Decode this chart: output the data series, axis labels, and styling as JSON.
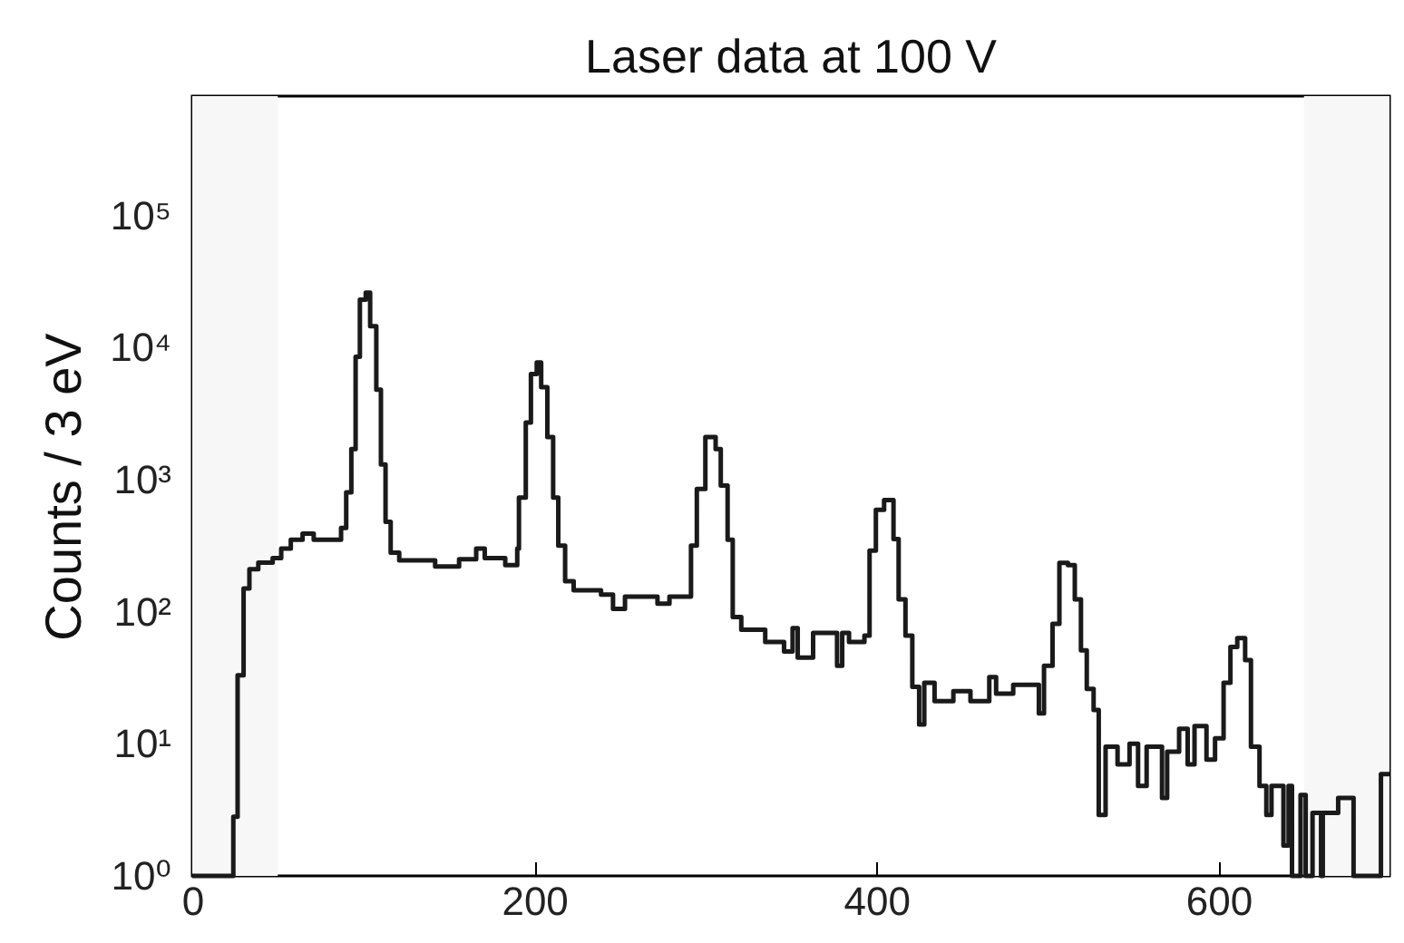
{
  "chart_data": {
    "type": "step",
    "title": "Laser data at 100 V",
    "ylabel": "Counts / 3 eV",
    "x": [
      0,
      24,
      26.5,
      30,
      33.4,
      38.6,
      47,
      52,
      57.6,
      64.5,
      71,
      87,
      90,
      93,
      95.5,
      98,
      101.4,
      104,
      107.6,
      110.3,
      113,
      116,
      121,
      142,
      156,
      166,
      171,
      183,
      190,
      191,
      195,
      198,
      201.4,
      204,
      207.6,
      211,
      214,
      218,
      223,
      239,
      246,
      253,
      272,
      279,
      291.6,
      295,
      300,
      306,
      309,
      313,
      316,
      321,
      335,
      346,
      351,
      354,
      363,
      377,
      380,
      384,
      393,
      396,
      399.7,
      404.5,
      410,
      413,
      417,
      421,
      425,
      428,
      434,
      445,
      455,
      466,
      470,
      480,
      495,
      498,
      503,
      507,
      512,
      516,
      519.6,
      523,
      527,
      530,
      534,
      541,
      548,
      553,
      558,
      567,
      570,
      577,
      582,
      586,
      593,
      598,
      603,
      607,
      611,
      615.6,
      619,
      624,
      628,
      631,
      638,
      641,
      643,
      648,
      651,
      655,
      660,
      661,
      665,
      670,
      679,
      695,
      700
    ],
    "values": [
      1,
      2.8,
      33,
      150,
      210,
      235,
      255,
      300,
      350,
      390,
      350,
      430,
      800,
      1700,
      8500,
      23000,
      26000,
      14500,
      4800,
      1300,
      480,
      280,
      245,
      220,
      250,
      300,
      255,
      225,
      300,
      730,
      2700,
      6300,
      7700,
      5000,
      2100,
      730,
      316,
      170,
      145,
      135,
      105,
      130,
      115,
      130,
      316,
      850,
      2100,
      1700,
      900,
      350,
      91,
      73,
      59,
      50,
      75,
      45,
      69,
      39,
      69,
      59,
      66,
      290,
      590,
      700,
      355,
      124,
      66,
      27,
      14,
      29,
      21,
      25,
      21,
      32,
      24,
      28,
      17,
      39,
      81,
      234,
      225,
      124,
      51,
      26,
      18,
      2.9,
      9.5,
      7,
      10,
      4.8,
      9.5,
      3.9,
      8.7,
      13,
      7,
      13.6,
      7.6,
      11,
      29,
      54,
      63,
      43,
      9.5,
      4.8,
      2.9,
      4.8,
      1.7,
      4.8,
      1,
      4.1,
      1,
      3,
      1,
      3,
      3,
      3.9,
      1,
      5.9,
      5.9
    ],
    "color": "#1a1a1a",
    "log": "y",
    "xlim": [
      0,
      700
    ],
    "xticks": [
      0,
      200,
      400,
      600
    ],
    "ylim": [
      1,
      800000
    ],
    "yticks": [
      {
        "value": 1,
        "label": "10⁰"
      },
      {
        "value": 10,
        "label": "10¹"
      },
      {
        "value": 100,
        "label": "10²"
      },
      {
        "value": 1000,
        "label": "10³"
      },
      {
        "value": 10000,
        "label": "10⁴"
      },
      {
        "value": 100000,
        "label": "10⁵"
      }
    ],
    "bands": [
      {
        "axis": "x",
        "from": 0,
        "to": 50,
        "color": "#f7f7f7"
      },
      {
        "axis": "x",
        "from": 650,
        "to": 700,
        "color": "#f7f7f7"
      }
    ],
    "grid": false
  }
}
